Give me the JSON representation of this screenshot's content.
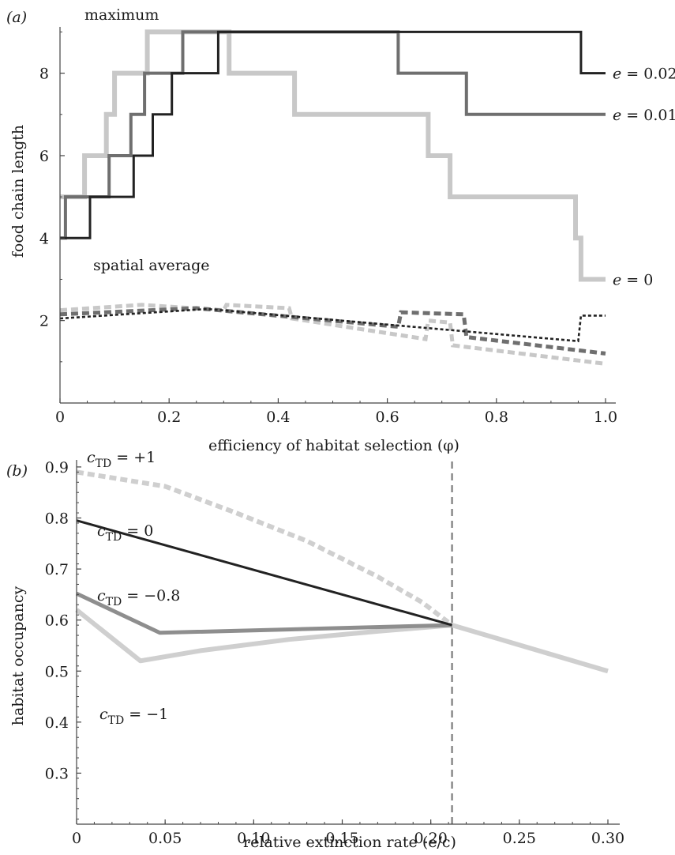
{
  "chart_data": [
    {
      "type": "line",
      "panel_label": "(a)",
      "title": "",
      "xlabel": "efficiency of habitat selection (φ)",
      "ylabel": "food chain length",
      "xlim": [
        0,
        1.0
      ],
      "ylim": [
        0,
        9.2
      ],
      "x_ticks": [
        0,
        0.2,
        0.4,
        0.6,
        0.8,
        1.0
      ],
      "x_tick_labels": [
        "0",
        "0.2",
        "0.4",
        "0.6",
        "0.8",
        "1.0"
      ],
      "y_ticks": [
        2,
        4,
        6,
        8
      ],
      "y_tick_labels": [
        "2",
        "4",
        "6",
        "8"
      ],
      "grid": false,
      "legend": "none (series labelled inline at right end)",
      "annotations": [
        "maximum",
        "spatial average"
      ],
      "series": [
        {
          "name": "e = 0.02",
          "label_parts": [
            "e",
            " = 0.02"
          ],
          "group": "maximum",
          "color": "#222222",
          "style": "solid",
          "points": [
            [
              0,
              4
            ],
            [
              0.055,
              4
            ],
            [
              0.055,
              5
            ],
            [
              0.135,
              5
            ],
            [
              0.135,
              6
            ],
            [
              0.17,
              6
            ],
            [
              0.17,
              7
            ],
            [
              0.205,
              7
            ],
            [
              0.205,
              8
            ],
            [
              0.29,
              8
            ],
            [
              0.29,
              9
            ],
            [
              0.955,
              9
            ],
            [
              0.955,
              8
            ],
            [
              1.0,
              8
            ]
          ]
        },
        {
          "name": "e = 0.01",
          "label_parts": [
            "e",
            " = 0.01"
          ],
          "group": "maximum",
          "color": "#6f6f6f",
          "style": "solid",
          "points": [
            [
              0,
              4
            ],
            [
              0.01,
              4
            ],
            [
              0.01,
              5
            ],
            [
              0.09,
              5
            ],
            [
              0.09,
              6
            ],
            [
              0.13,
              6
            ],
            [
              0.13,
              7
            ],
            [
              0.155,
              7
            ],
            [
              0.155,
              8
            ],
            [
              0.225,
              8
            ],
            [
              0.225,
              9
            ],
            [
              0.62,
              9
            ],
            [
              0.62,
              8
            ],
            [
              0.745,
              8
            ],
            [
              0.745,
              7
            ],
            [
              1.0,
              7
            ]
          ]
        },
        {
          "name": "e = 0",
          "label_parts": [
            "e",
            " = 0"
          ],
          "group": "maximum",
          "color": "#c8c8c8",
          "style": "solid",
          "points": [
            [
              0,
              5
            ],
            [
              0.045,
              5
            ],
            [
              0.045,
              6
            ],
            [
              0.085,
              6
            ],
            [
              0.085,
              7
            ],
            [
              0.1,
              7
            ],
            [
              0.1,
              8
            ],
            [
              0.16,
              8
            ],
            [
              0.16,
              9
            ],
            [
              0.31,
              9
            ],
            [
              0.31,
              8
            ],
            [
              0.43,
              8
            ],
            [
              0.43,
              7
            ],
            [
              0.675,
              7
            ],
            [
              0.675,
              6
            ],
            [
              0.715,
              6
            ],
            [
              0.715,
              5
            ],
            [
              0.945,
              5
            ],
            [
              0.945,
              4
            ],
            [
              0.955,
              4
            ],
            [
              0.955,
              3
            ],
            [
              1.0,
              3
            ]
          ]
        },
        {
          "name": "",
          "group": "spatial average",
          "color": "#c8c8c8",
          "style": "dashed",
          "points": [
            [
              0,
              2.25
            ],
            [
              0.15,
              2.38
            ],
            [
              0.3,
              2.25
            ],
            [
              0.305,
              2.38
            ],
            [
              0.42,
              2.3
            ],
            [
              0.425,
              2.05
            ],
            [
              0.67,
              1.55
            ],
            [
              0.675,
              2.0
            ],
            [
              0.715,
              1.95
            ],
            [
              0.72,
              1.4
            ],
            [
              1.0,
              0.95
            ]
          ]
        },
        {
          "name": "",
          "group": "spatial average",
          "color": "#6f6f6f",
          "style": "dashed",
          "points": [
            [
              0,
              2.15
            ],
            [
              0.25,
              2.3
            ],
            [
              0.62,
              1.85
            ],
            [
              0.625,
              2.2
            ],
            [
              0.74,
              2.15
            ],
            [
              0.745,
              1.6
            ],
            [
              1.0,
              1.2
            ]
          ]
        },
        {
          "name": "",
          "group": "spatial average",
          "color": "#222222",
          "style": "dotted",
          "points": [
            [
              0,
              2.05
            ],
            [
              0.27,
              2.28
            ],
            [
              0.95,
              1.5
            ],
            [
              0.955,
              2.12
            ],
            [
              1.0,
              2.12
            ]
          ]
        }
      ]
    },
    {
      "type": "line",
      "panel_label": "(b)",
      "title": "",
      "xlabel": "relative extinction rate (e/c)",
      "ylabel": "habitat occupancy",
      "xlim": [
        0,
        0.3
      ],
      "ylim": [
        0.2,
        0.92
      ],
      "x_ticks": [
        0,
        0.05,
        0.1,
        0.15,
        0.2,
        0.25,
        0.3
      ],
      "x_tick_labels": [
        "0",
        "0.05",
        "0.10",
        "0.15",
        "0.20",
        "0.25",
        "0.30"
      ],
      "y_ticks": [
        0.3,
        0.4,
        0.5,
        0.6,
        0.7,
        0.8,
        0.9
      ],
      "y_tick_labels": [
        "0.3",
        "0.4",
        "0.5",
        "0.6",
        "0.7",
        "0.8",
        "0.9"
      ],
      "grid": false,
      "legend": "none (series labelled inline at left)",
      "reference_line": {
        "x": 0.212,
        "style": "dashed",
        "color": "#8a8a8a"
      },
      "series": [
        {
          "name": "c_TD = +1",
          "label_parts": [
            "c",
            "TD",
            " = +1"
          ],
          "color": "#cfcfcf",
          "style": "dashed",
          "points": [
            [
              0,
              0.89
            ],
            [
              0.05,
              0.862
            ],
            [
              0.09,
              0.81
            ],
            [
              0.13,
              0.755
            ],
            [
              0.17,
              0.685
            ],
            [
              0.195,
              0.635
            ],
            [
              0.212,
              0.59
            ]
          ]
        },
        {
          "name": "c_TD = 0",
          "label_parts": [
            "c",
            "TD",
            " = 0"
          ],
          "color": "#222222",
          "style": "solid",
          "points": [
            [
              0,
              0.795
            ],
            [
              0.212,
              0.59
            ]
          ]
        },
        {
          "name": "c_TD = −0.8",
          "label_parts": [
            "c",
            "TD",
            " = −0.8"
          ],
          "color": "#8e8e8e",
          "style": "solid",
          "points": [
            [
              0,
              0.652
            ],
            [
              0.047,
              0.575
            ],
            [
              0.212,
              0.59
            ]
          ]
        },
        {
          "name": "c_TD = −1",
          "label_parts": [
            "c",
            "TD",
            " = −1"
          ],
          "color": "#cfcfcf",
          "style": "solid",
          "points": [
            [
              0,
              0.62
            ],
            [
              0.036,
              0.52
            ],
            [
              0.07,
              0.54
            ],
            [
              0.12,
              0.562
            ],
            [
              0.17,
              0.578
            ],
            [
              0.212,
              0.59
            ]
          ]
        },
        {
          "name": "",
          "color": "#cfcfcf",
          "style": "solid",
          "points": [
            [
              0.212,
              0.59
            ],
            [
              0.3,
              0.5
            ]
          ]
        }
      ]
    }
  ]
}
